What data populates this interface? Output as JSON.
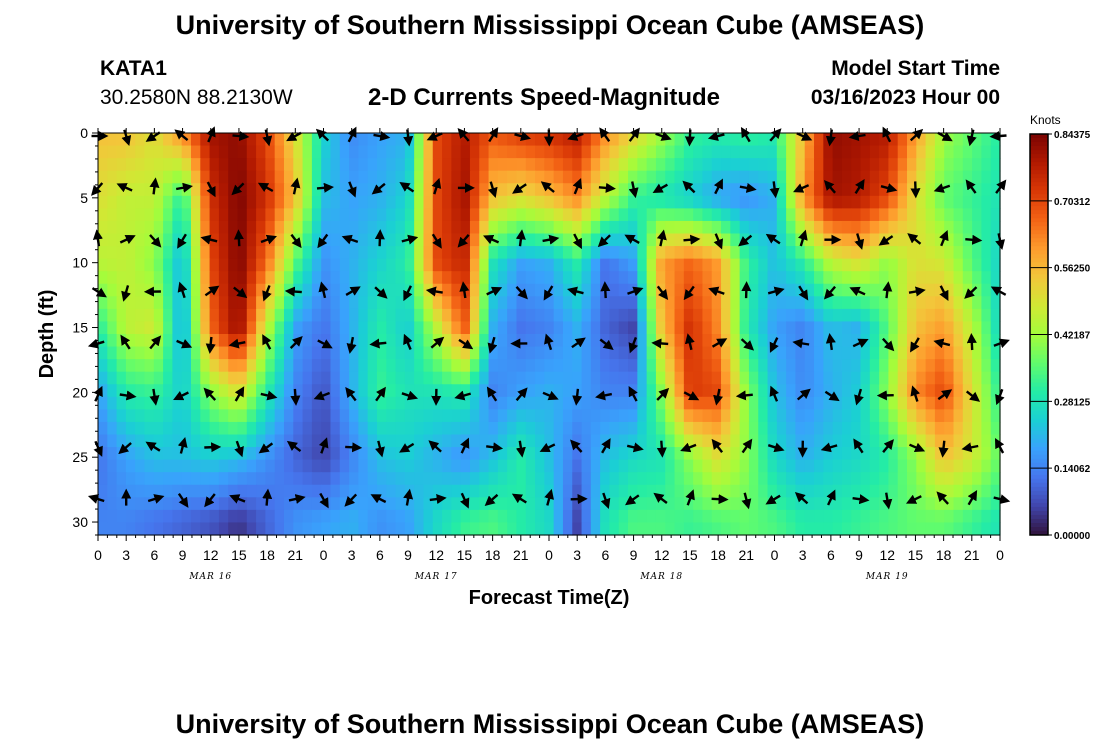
{
  "header": {
    "title": "University of Southern Mississippi Ocean Cube (AMSEAS)",
    "station": "KATA1",
    "coords": "30.2580N  88.2130W",
    "subtitle": "2-D Currents Speed-Magnitude",
    "model_start_label": "Model Start Time",
    "model_start_value": "03/16/2023 Hour 00"
  },
  "footer": {
    "title": "University of Southern Mississippi Ocean Cube (AMSEAS)"
  },
  "chart_data": {
    "type": "heatmap",
    "title": "2-D Currents Speed-Magnitude",
    "xlabel": "Forecast Time(Z)",
    "ylabel": "Depth (ft)",
    "x_tick_labels": [
      "0",
      "3",
      "6",
      "9",
      "12",
      "15",
      "18",
      "21",
      "0",
      "3",
      "6",
      "9",
      "12",
      "15",
      "18",
      "21",
      "0",
      "3",
      "6",
      "9",
      "12",
      "15",
      "18",
      "21",
      "0",
      "3",
      "6",
      "9",
      "12",
      "15",
      "18",
      "21",
      "0"
    ],
    "x_range_hours": [
      0,
      96
    ],
    "date_labels": [
      {
        "label": "MAR 16",
        "hour": 12
      },
      {
        "label": "MAR 17",
        "hour": 36
      },
      {
        "label": "MAR 18",
        "hour": 60
      },
      {
        "label": "MAR 19",
        "hour": 84
      }
    ],
    "y_range": [
      0,
      31
    ],
    "y_ticks": [
      0,
      5,
      10,
      15,
      20,
      25,
      30
    ],
    "colorbar": {
      "unit": "Knots",
      "range": [
        0,
        0.84375
      ],
      "ticks": [
        "0.00000",
        "0.14062",
        "0.28125",
        "0.42187",
        "0.56250",
        "0.70312",
        "0.84375"
      ],
      "colors": [
        "#30123b",
        "#4145ab",
        "#4675ed",
        "#39a2fc",
        "#1bcfd4",
        "#24eca6",
        "#61fc6c",
        "#a4fc3b",
        "#d1e834",
        "#f3c63a",
        "#fe9b2d",
        "#f36315",
        "#d93806",
        "#b11901",
        "#7a0402"
      ]
    },
    "vector_depths_ft": [
      0,
      4,
      8,
      12,
      16,
      20,
      24,
      28
    ],
    "vector_hours": [
      0,
      3,
      6,
      9,
      12,
      15,
      18,
      21,
      24,
      27,
      30,
      33,
      36,
      39,
      42,
      45,
      48,
      51,
      54,
      57,
      60,
      63,
      66,
      69,
      72,
      75,
      78,
      81,
      84,
      87,
      90,
      93,
      96
    ],
    "speed_profiles_knots": {
      "depths_ft": [
        0,
        5,
        10,
        15,
        20,
        25,
        30
      ],
      "hours": [
        0,
        3,
        6,
        9,
        12,
        15,
        18,
        21,
        24,
        27,
        30,
        33,
        36,
        39,
        42,
        45,
        48,
        51,
        54,
        57,
        60,
        63,
        66,
        69,
        72,
        75,
        78,
        81,
        84,
        87,
        90,
        93,
        96
      ],
      "values": [
        [
          0.55,
          0.55,
          0.5,
          0.62,
          0.8,
          0.82,
          0.7,
          0.5,
          0.25,
          0.15,
          0.18,
          0.2,
          0.7,
          0.78,
          0.68,
          0.72,
          0.74,
          0.78,
          0.62,
          0.52,
          0.42,
          0.32,
          0.3,
          0.32,
          0.3,
          0.55,
          0.82,
          0.8,
          0.78,
          0.6,
          0.42,
          0.36,
          0.3
        ],
        [
          0.5,
          0.46,
          0.46,
          0.3,
          0.74,
          0.84,
          0.74,
          0.55,
          0.22,
          0.18,
          0.2,
          0.25,
          0.7,
          0.8,
          0.55,
          0.5,
          0.55,
          0.62,
          0.45,
          0.32,
          0.28,
          0.24,
          0.18,
          0.16,
          0.2,
          0.6,
          0.8,
          0.78,
          0.7,
          0.5,
          0.36,
          0.32,
          0.28
        ],
        [
          0.45,
          0.46,
          0.4,
          0.2,
          0.7,
          0.84,
          0.65,
          0.35,
          0.16,
          0.2,
          0.25,
          0.3,
          0.7,
          0.76,
          0.28,
          0.18,
          0.2,
          0.3,
          0.12,
          0.18,
          0.6,
          0.66,
          0.6,
          0.32,
          0.22,
          0.3,
          0.45,
          0.5,
          0.4,
          0.5,
          0.48,
          0.35,
          0.25
        ],
        [
          0.3,
          0.45,
          0.48,
          0.18,
          0.66,
          0.82,
          0.45,
          0.18,
          0.12,
          0.2,
          0.3,
          0.24,
          0.45,
          0.68,
          0.2,
          0.12,
          0.14,
          0.2,
          0.1,
          0.06,
          0.55,
          0.74,
          0.62,
          0.3,
          0.18,
          0.14,
          0.22,
          0.2,
          0.35,
          0.55,
          0.6,
          0.45,
          0.25
        ],
        [
          0.18,
          0.3,
          0.32,
          0.24,
          0.4,
          0.5,
          0.3,
          0.14,
          0.08,
          0.2,
          0.32,
          0.28,
          0.28,
          0.3,
          0.14,
          0.18,
          0.2,
          0.18,
          0.14,
          0.14,
          0.4,
          0.72,
          0.7,
          0.4,
          0.22,
          0.15,
          0.2,
          0.24,
          0.4,
          0.62,
          0.7,
          0.5,
          0.3
        ],
        [
          0.12,
          0.18,
          0.22,
          0.22,
          0.24,
          0.22,
          0.16,
          0.1,
          0.06,
          0.14,
          0.22,
          0.24,
          0.2,
          0.16,
          0.22,
          0.3,
          0.22,
          0.12,
          0.22,
          0.26,
          0.28,
          0.4,
          0.5,
          0.4,
          0.26,
          0.2,
          0.24,
          0.26,
          0.3,
          0.4,
          0.55,
          0.48,
          0.36
        ],
        [
          0.14,
          0.14,
          0.12,
          0.1,
          0.08,
          0.04,
          0.1,
          0.16,
          0.18,
          0.2,
          0.16,
          0.18,
          0.26,
          0.32,
          0.34,
          0.3,
          0.26,
          0.06,
          0.28,
          0.34,
          0.34,
          0.32,
          0.34,
          0.36,
          0.34,
          0.3,
          0.3,
          0.32,
          0.34,
          0.36,
          0.36,
          0.32,
          0.28
        ]
      ]
    }
  }
}
